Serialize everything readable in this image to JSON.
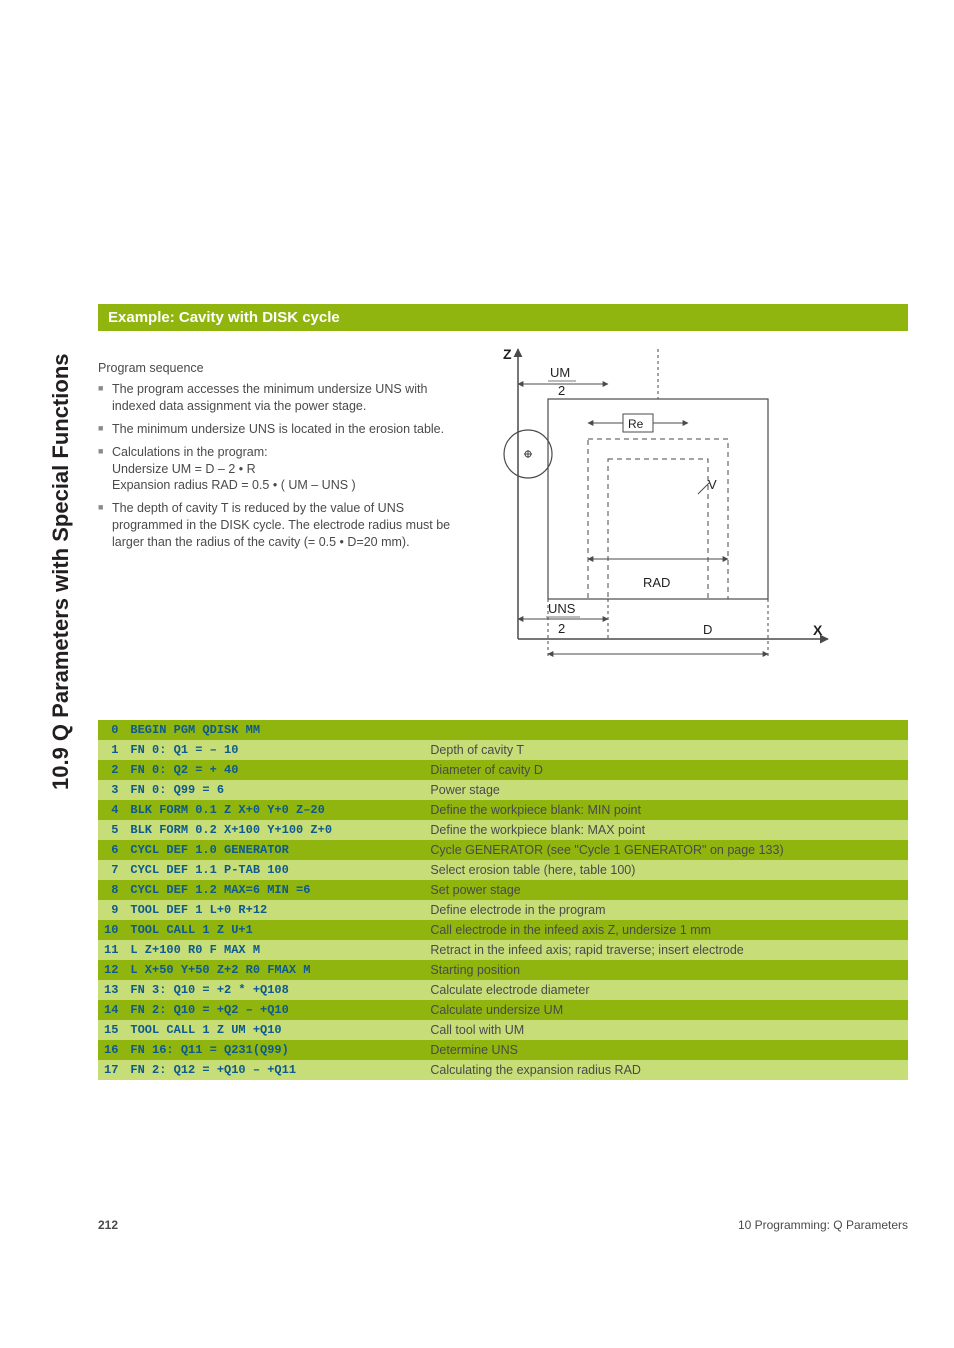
{
  "sidebar_heading": "10.9 Q Parameters with Special Functions",
  "title": "Example: Cavity with DISK cycle",
  "intro_label": "Program sequence",
  "bullets": [
    "The program accesses the minimum undersize UNS with indexed data assignment via the power stage.",
    "The minimum undersize UNS is located in the erosion table.",
    "Calculations in the program:\nUndersize UM = D – 2 • R\nExpansion radius RAD = 0.5 • ( UM – UNS )",
    "The depth of cavity T is reduced by the value of UNS programmed in the DISK cycle. The electrode radius must be larger than the radius of the cavity (= 0.5 • D=20 mm)."
  ],
  "diagram": {
    "axis_z": "Z",
    "axis_x": "X",
    "label_um": "UM",
    "label_um_denom": "2",
    "label_re": "Re",
    "label_v": "V",
    "label_rad": "RAD",
    "label_uns": "UNS",
    "label_uns_denom": "2",
    "label_d": "D",
    "colors": {
      "stroke": "#4a4a4a",
      "bg": "#ffffff"
    }
  },
  "rows": [
    {
      "n": "0",
      "code": "BEGIN PGM QDISK MM",
      "desc": ""
    },
    {
      "n": "1",
      "code": "FN 0: Q1 = – 10",
      "desc": "Depth of cavity T"
    },
    {
      "n": "2",
      "code": "FN 0: Q2 = + 40",
      "desc": "Diameter of cavity D"
    },
    {
      "n": "3",
      "code": "FN 0: Q99 = 6",
      "desc": "Power stage"
    },
    {
      "n": "4",
      "code": "BLK FORM 0.1 Z X+0 Y+0 Z–20",
      "desc": "Define the workpiece blank: MIN point"
    },
    {
      "n": "5",
      "code": "BLK FORM 0.2 X+100 Y+100 Z+0",
      "desc": "Define the workpiece blank: MAX point"
    },
    {
      "n": "6",
      "code": "CYCL DEF 1.0 GENERATOR",
      "desc": "Cycle GENERATOR (see \"Cycle 1 GENERATOR\" on page 133)"
    },
    {
      "n": "7",
      "code": "CYCL DEF 1.1 P-TAB 100",
      "desc": "Select erosion table (here, table 100)"
    },
    {
      "n": "8",
      "code": "CYCL DEF 1.2 MAX=6 MIN =6",
      "desc": "Set power stage"
    },
    {
      "n": "9",
      "code": "TOOL DEF 1 L+0 R+12",
      "desc": "Define electrode in the program"
    },
    {
      "n": "10",
      "code": "TOOL CALL 1 Z U+1",
      "desc": "Call electrode in the infeed axis Z, undersize 1 mm"
    },
    {
      "n": "11",
      "code": "L Z+100 R0 F MAX M",
      "desc": "Retract in the infeed axis; rapid traverse; insert electrode"
    },
    {
      "n": "12",
      "code": "L X+50 Y+50 Z+2 R0 FMAX M",
      "desc": "Starting position"
    },
    {
      "n": "13",
      "code": "FN 3: Q10 = +2 * +Q108",
      "desc": "Calculate electrode diameter"
    },
    {
      "n": "14",
      "code": "FN 2: Q10 = +Q2 – +Q10",
      "desc": "Calculate undersize UM"
    },
    {
      "n": "15",
      "code": "TOOL CALL 1 Z UM +Q10",
      "desc": "Call tool with UM"
    },
    {
      "n": "16",
      "code": "FN 16: Q11 = Q231(Q99)",
      "desc": "Determine UNS"
    },
    {
      "n": "17",
      "code": "FN 2: Q12 = +Q10 – +Q11",
      "desc": "Calculating the expansion radius RAD"
    }
  ],
  "row_colors": {
    "dark": "#91b50f",
    "light": "#c7dd78",
    "code_color": "#0d5a8e"
  },
  "footer": {
    "page": "212",
    "chapter": "10 Programming: Q Parameters"
  }
}
